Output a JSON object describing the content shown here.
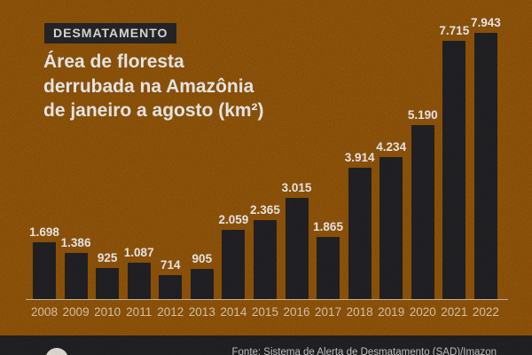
{
  "colors": {
    "background": "#9a5a0a",
    "bar": "#242428",
    "badge_bg": "#29282c",
    "title_text": "#ffffff",
    "value_label_text": "#ffffff",
    "year_label_text": "#e8d8ba",
    "axis_line": "#d8c7a4",
    "footer_bg": "#242427",
    "footer_text": "#d5d5d5",
    "logo_circle": "#f2eee4"
  },
  "badge": {
    "label": "DESMATAMENTO"
  },
  "title": {
    "line1": "Área de floresta",
    "line2": "derrubada na Amazônia",
    "line3": "de janeiro a agosto (km²)"
  },
  "chart_data": {
    "type": "bar",
    "title": "Área de floresta derrubada na Amazônia de janeiro a agosto (km²)",
    "unit": "km²",
    "period": "janeiro a agosto",
    "categories": [
      "2008",
      "2009",
      "2010",
      "2011",
      "2012",
      "2013",
      "2014",
      "2015",
      "2016",
      "2017",
      "2018",
      "2019",
      "2020",
      "2021",
      "2022"
    ],
    "values": [
      1698,
      1386,
      925,
      1087,
      714,
      905,
      2059,
      2365,
      3015,
      1865,
      3914,
      4234,
      5190,
      7715,
      7943
    ],
    "value_labels": [
      "1.698",
      "1.386",
      "925",
      "1.087",
      "714",
      "905",
      "2.059",
      "2.365",
      "3.015",
      "1.865",
      "3.914",
      "4.234",
      "5.190",
      "7.715",
      "7.943"
    ],
    "xlabel": "",
    "ylabel": "",
    "ylim": [
      0,
      7943
    ],
    "grid": false,
    "legend": false,
    "bar_color": "#242428",
    "value_labels_position": "above-bars",
    "axis_labels_position": "below-baseline"
  },
  "footer": {
    "source_text": "Fonte: Sistema de Alerta de Desmatamento (SAD)/Imazon",
    "logo_icon": "news-outlet-logo"
  }
}
